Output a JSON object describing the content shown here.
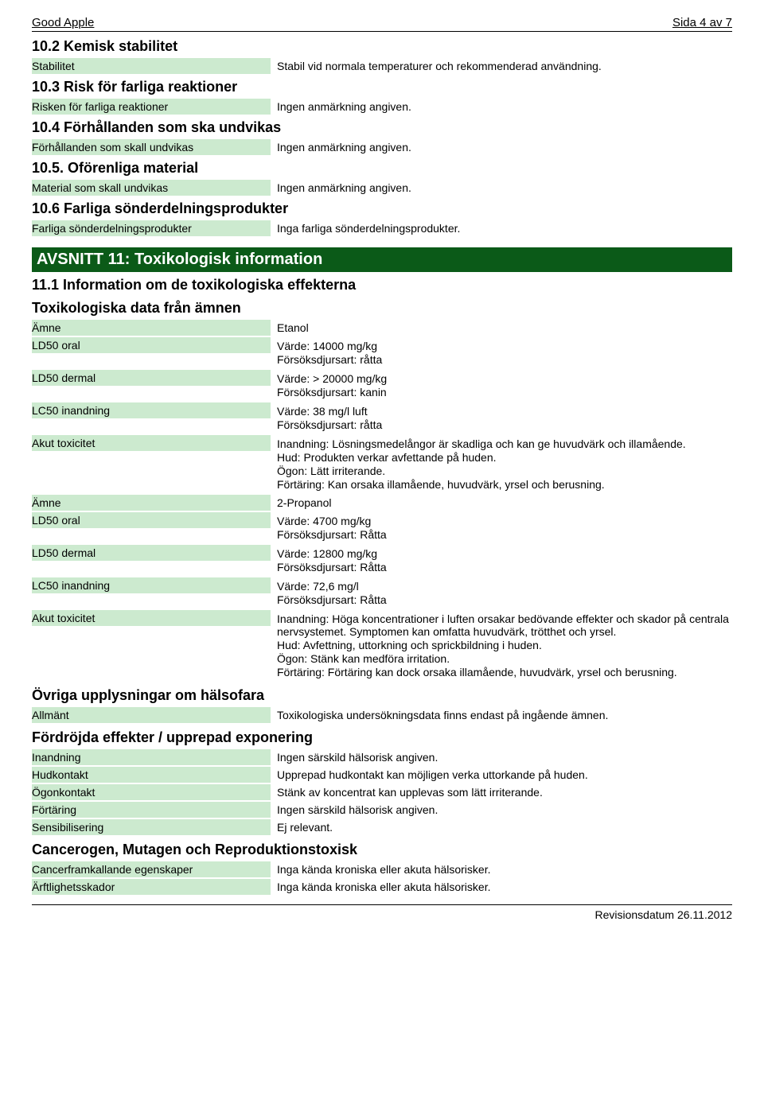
{
  "header": {
    "left": "Good Apple",
    "right": "Sida 4 av 7"
  },
  "sections": {
    "s102": {
      "title": "10.2 Kemisk stabilitet",
      "row": {
        "label": "Stabilitet",
        "value": "Stabil vid normala temperaturer och rekommenderad användning."
      }
    },
    "s103": {
      "title": "10.3 Risk för farliga reaktioner",
      "row": {
        "label": "Risken för farliga reaktioner",
        "value": "Ingen anmärkning angiven."
      }
    },
    "s104": {
      "title": "10.4 Förhållanden som ska undvikas",
      "row": {
        "label": "Förhållanden som skall undvikas",
        "value": "Ingen anmärkning angiven."
      }
    },
    "s105": {
      "title": "10.5. Oförenliga material",
      "row": {
        "label": "Material som skall undvikas",
        "value": "Ingen anmärkning angiven."
      }
    },
    "s106": {
      "title": "10.6 Farliga sönderdelningsprodukter",
      "row": {
        "label": "Farliga sönderdelningsprodukter",
        "value": "Inga farliga sönderdelningsprodukter."
      }
    }
  },
  "banner11": "AVSNITT 11: Toxikologisk information",
  "s111": {
    "title": "11.1 Information om de toxikologiska effekterna",
    "subheading": "Toxikologiska data från ämnen"
  },
  "tox": {
    "r0": {
      "label": "Ämne",
      "value": "Etanol"
    },
    "r1": {
      "label": "LD50 oral",
      "l1": "Värde: 14000 mg/kg",
      "l2": "Försöksdjursart: råtta"
    },
    "r2": {
      "label": "LD50 dermal",
      "l1": "Värde: > 20000 mg/kg",
      "l2": "Försöksdjursart: kanin"
    },
    "r3": {
      "label": "LC50 inandning",
      "l1": "Värde: 38 mg/l luft",
      "l2": "Försöksdjursart: råtta"
    },
    "r4": {
      "label": "Akut toxicitet",
      "l1": "Inandning: Lösningsmedelångor är skadliga och kan ge huvudvärk och illamående.",
      "l2": "Hud: Produkten verkar avfettande på huden.",
      "l3": "Ögon: Lätt irriterande.",
      "l4": "Förtäring: Kan orsaka illamående, huvudvärk, yrsel och berusning."
    },
    "r5": {
      "label": "Ämne",
      "value": "2-Propanol"
    },
    "r6": {
      "label": "LD50 oral",
      "l1": "Värde: 4700 mg/kg",
      "l2": "Försöksdjursart: Råtta"
    },
    "r7": {
      "label": "LD50 dermal",
      "l1": "Värde: 12800 mg/kg",
      "l2": "Försöksdjursart: Råtta"
    },
    "r8": {
      "label": "LC50 inandning",
      "l1": "Värde: 72,6 mg/l",
      "l2": "Försöksdjursart: Råtta"
    },
    "r9": {
      "label": "Akut toxicitet",
      "l1": "Inandning: Höga koncentrationer i luften orsakar bedövande effekter och skador på centrala nervsystemet. Symptomen kan omfatta huvudvärk, trötthet och yrsel.",
      "l2": "Hud: Avfettning, uttorkning och sprickbildning i huden.",
      "l3": "Ögon: Stänk kan medföra irritation.",
      "l4": "Förtäring: Förtäring kan dock orsaka illamående, huvudvärk, yrsel och berusning."
    }
  },
  "ovriga": {
    "title": "Övriga upplysningar om hälsofara",
    "row": {
      "label": "Allmänt",
      "value": "Toxikologiska undersökningsdata finns endast på ingående ämnen."
    }
  },
  "fordrojda": {
    "title": "Fördröjda effekter / upprepad exponering",
    "r0": {
      "label": "Inandning",
      "value": "Ingen särskild hälsorisk angiven."
    },
    "r1": {
      "label": "Hudkontakt",
      "value": "Upprepad hudkontakt kan möjligen verka uttorkande på huden."
    },
    "r2": {
      "label": "Ögonkontakt",
      "value": "Stänk av koncentrat kan upplevas som lätt irriterande."
    },
    "r3": {
      "label": "Förtäring",
      "value": "Ingen särskild hälsorisk angiven."
    },
    "r4": {
      "label": "Sensibilisering",
      "value": "Ej relevant."
    }
  },
  "cancer": {
    "title": "Cancerogen, Mutagen och Reproduktionstoxisk",
    "r0": {
      "label": "Cancerframkallande egenskaper",
      "value": "Inga kända kroniska eller akuta hälsorisker."
    },
    "r1": {
      "label": "Ärftlighetsskador",
      "value": "Inga kända kroniska eller akuta hälsorisker."
    }
  },
  "footer": "Revisionsdatum 26.11.2012"
}
